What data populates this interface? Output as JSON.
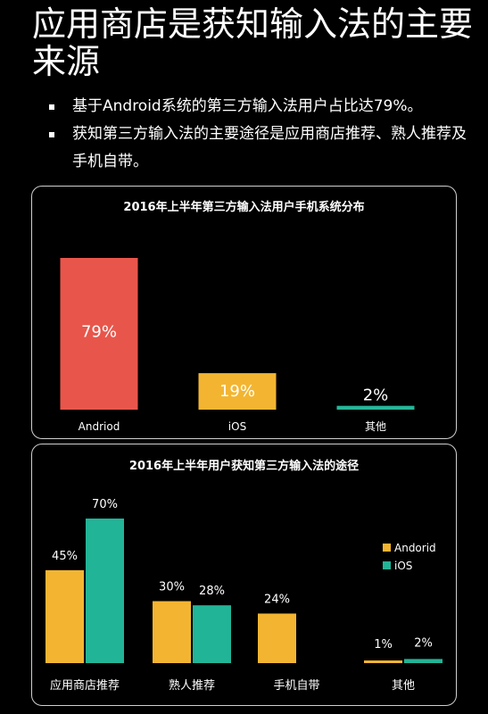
{
  "slide": {
    "title": "应用商店是获知输入法的主要来源",
    "bullets": [
      "基于Android系统的第三方输入法用户占比达79%。",
      "获知第三方输入法的主要途径是应用商店推荐、熟人推荐及手机自带。"
    ]
  },
  "colors": {
    "android": "#e8564b",
    "ios": "#f3b531",
    "other": "#26b597",
    "orange": "#f3b531",
    "teal": "#22b497"
  },
  "chart_data": [
    {
      "type": "bar",
      "title": "2016年上半年第三方输入法用户手机系统分布",
      "categories": [
        "Andriod",
        "iOS",
        "其他"
      ],
      "values": [
        79,
        19,
        2
      ],
      "value_labels": [
        "79%",
        "19%",
        "2%"
      ],
      "ylim": [
        0,
        79
      ],
      "grid": false
    },
    {
      "type": "bar",
      "title": "2016年上半年用户获知第三方输入法的途径",
      "categories": [
        "应用商店推荐",
        "熟人推荐",
        "手机自带",
        "其他"
      ],
      "series": [
        {
          "name": "Andorid",
          "values": [
            45,
            30,
            24,
            1
          ],
          "labels": [
            "45%",
            "30%",
            "24%",
            "1%"
          ]
        },
        {
          "name": "iOS",
          "values": [
            70,
            28,
            null,
            2
          ],
          "labels": [
            "70%",
            "28%",
            "",
            "2%"
          ]
        }
      ],
      "ylim": [
        0,
        70
      ],
      "legend": "right",
      "grid": false
    }
  ]
}
